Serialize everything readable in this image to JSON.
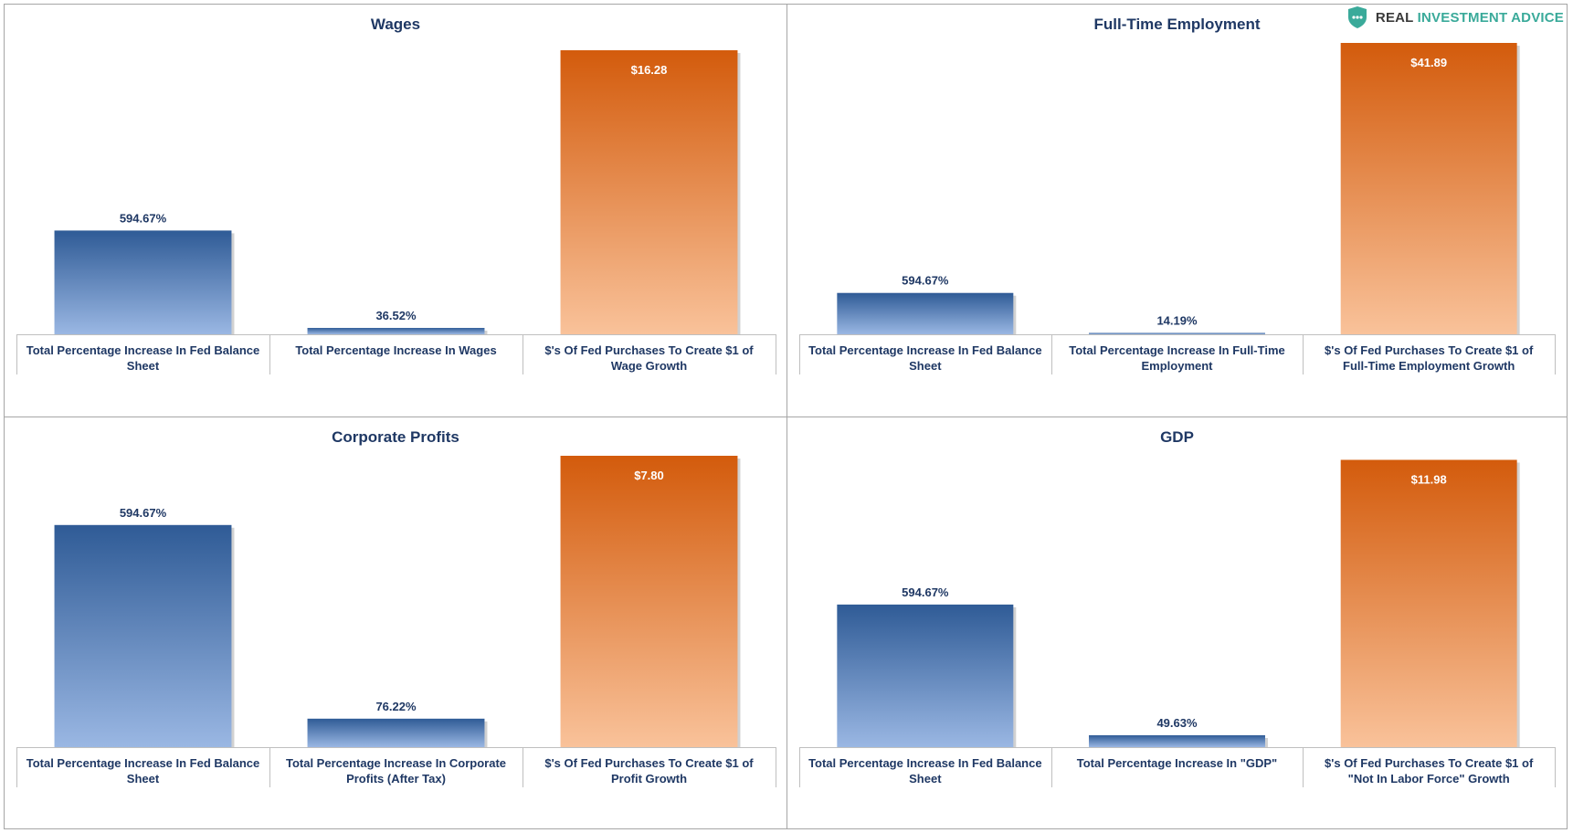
{
  "brand": {
    "part1": "REAL ",
    "part2": "INVESTMENT ADVICE",
    "icon": "shield-chat-icon",
    "color": "#3aaa9a"
  },
  "colors": {
    "blue_top": "#2f5b96",
    "blue_bottom": "#9ab7e3",
    "orange_top": "#d35b0c",
    "orange_bottom": "#f9c29a",
    "label": "#1f3864"
  },
  "chart_data": [
    {
      "type": "bar",
      "title": "Wages",
      "categories": [
        "Total Percentage Increase In Fed Balance Sheet",
        "Total Percentage Increase In Wages",
        "$'s Of Fed Purchases To Create $1 of Wage Growth"
      ],
      "values": [
        5.9467,
        0.3652,
        16.28
      ],
      "labels": [
        "594.67%",
        "36.52%",
        "$16.28"
      ],
      "ylim": [
        0,
        16.7
      ]
    },
    {
      "type": "bar",
      "title": "Full-Time Employment",
      "categories": [
        "Total Percentage Increase In Fed Balance Sheet",
        "Total Percentage Increase In Full-Time Employment",
        "$'s Of Fed Purchases To Create $1 of Full-Time Employment Growth"
      ],
      "values": [
        5.9467,
        0.1419,
        41.89
      ],
      "labels": [
        "594.67%",
        "14.19%",
        "$41.89"
      ],
      "ylim": [
        0,
        41.89
      ]
    },
    {
      "type": "bar",
      "title": "Corporate Profits",
      "categories": [
        "Total Percentage Increase In Fed Balance Sheet",
        "Total Percentage Increase In Corporate Profits (After Tax)",
        "$'s Of Fed Purchases To Create $1 of Profit Growth"
      ],
      "values": [
        5.9467,
        0.7622,
        7.8
      ],
      "labels": [
        "594.67%",
        "76.22%",
        "$7.80"
      ],
      "ylim": [
        0,
        7.8
      ]
    },
    {
      "type": "bar",
      "title": "GDP",
      "categories": [
        "Total Percentage Increase In Fed Balance Sheet",
        "Total Percentage Increase In \"GDP\"",
        "$'s Of Fed Purchases To Create $1 of \"Not In Labor Force\" Growth"
      ],
      "values": [
        5.9467,
        0.4963,
        11.98
      ],
      "labels": [
        "594.67%",
        "49.63%",
        "$11.98"
      ],
      "ylim": [
        0,
        12.15
      ]
    }
  ]
}
